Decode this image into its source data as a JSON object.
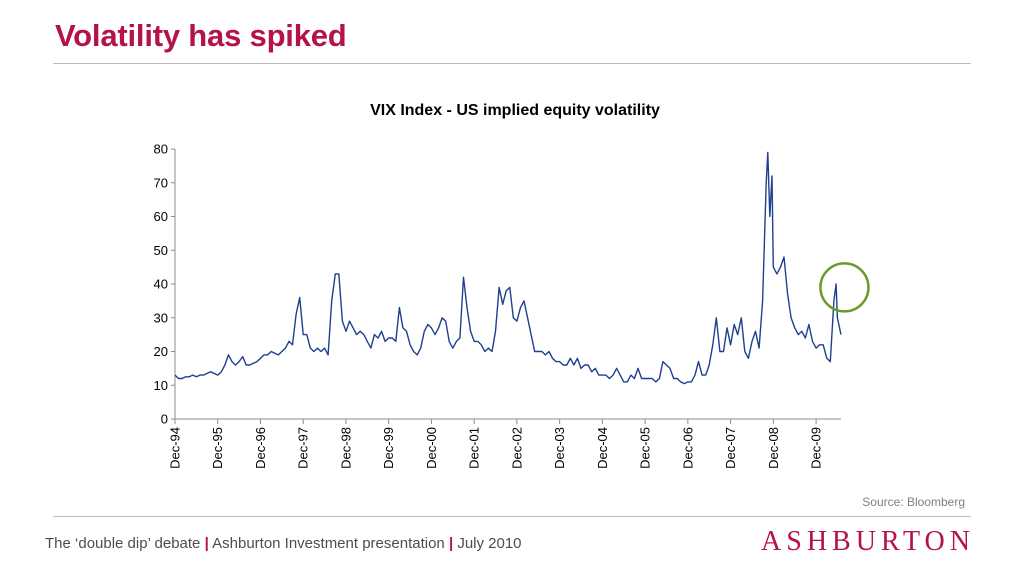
{
  "slide": {
    "title": "Volatility has spiked",
    "source": "Source: Bloomberg",
    "footer": {
      "part1": "The ‘double dip’ debate",
      "separator": "|",
      "part2": "Ashburton Investment presentation",
      "part3": "July 2010"
    },
    "brand": "ASHBURTON"
  },
  "colors": {
    "title": "#b5124a",
    "line": "#1f3f8f",
    "highlight_circle": "#6a9a2a",
    "axis": "#8c8c8c"
  },
  "chart_data": {
    "type": "line",
    "title": "VIX Index - US implied equity volatility",
    "xlabel": "",
    "ylabel": "",
    "ylim": [
      0,
      80
    ],
    "yticks": [
      0,
      10,
      20,
      30,
      40,
      50,
      60,
      70,
      80
    ],
    "xlim": [
      "1994-12",
      "2010-07"
    ],
    "xticks": [
      "Dec-94",
      "Dec-95",
      "Dec-96",
      "Dec-97",
      "Dec-98",
      "Dec-99",
      "Dec-00",
      "Dec-01",
      "Dec-02",
      "Dec-03",
      "Dec-04",
      "Dec-05",
      "Dec-06",
      "Dec-07",
      "Dec-08",
      "Dec-09"
    ],
    "grid": false,
    "legend": "none",
    "annotation": "green circle highlighting the mid-2010 spike",
    "annotation_center": [
      "2010-06",
      39
    ],
    "series": [
      {
        "values": [
          [
            "1994-12",
            13
          ],
          [
            "1995-01",
            12
          ],
          [
            "1995-02",
            12
          ],
          [
            "1995-03",
            12.5
          ],
          [
            "1995-04",
            12.5
          ],
          [
            "1995-05",
            13
          ],
          [
            "1995-06",
            12.5
          ],
          [
            "1995-07",
            13
          ],
          [
            "1995-08",
            13
          ],
          [
            "1995-09",
            13.5
          ],
          [
            "1995-10",
            14
          ],
          [
            "1995-11",
            13.5
          ],
          [
            "1995-12",
            13
          ],
          [
            "1996-01",
            14
          ],
          [
            "1996-02",
            16
          ],
          [
            "1996-03",
            19
          ],
          [
            "1996-04",
            17
          ],
          [
            "1996-05",
            16
          ],
          [
            "1996-06",
            17
          ],
          [
            "1996-07",
            18.5
          ],
          [
            "1996-08",
            16
          ],
          [
            "1996-09",
            16
          ],
          [
            "1996-10",
            16.5
          ],
          [
            "1996-11",
            17
          ],
          [
            "1996-12",
            18
          ],
          [
            "1997-01",
            19
          ],
          [
            "1997-02",
            19
          ],
          [
            "1997-03",
            20
          ],
          [
            "1997-04",
            19.5
          ],
          [
            "1997-05",
            19
          ],
          [
            "1997-06",
            20
          ],
          [
            "1997-07",
            21
          ],
          [
            "1997-08",
            23
          ],
          [
            "1997-09",
            22
          ],
          [
            "1997-10",
            31
          ],
          [
            "1997-11",
            36
          ],
          [
            "1997-12",
            25
          ],
          [
            "1998-01",
            25
          ],
          [
            "1998-02",
            21
          ],
          [
            "1998-03",
            20
          ],
          [
            "1998-04",
            21
          ],
          [
            "1998-05",
            20
          ],
          [
            "1998-06",
            21
          ],
          [
            "1998-07",
            19
          ],
          [
            "1998-08",
            35
          ],
          [
            "1998-09",
            43
          ],
          [
            "1998-10",
            43
          ],
          [
            "1998-11",
            29
          ],
          [
            "1998-12",
            26
          ],
          [
            "1999-01",
            29
          ],
          [
            "1999-02",
            27
          ],
          [
            "1999-03",
            25
          ],
          [
            "1999-04",
            26
          ],
          [
            "1999-05",
            25
          ],
          [
            "1999-06",
            23
          ],
          [
            "1999-07",
            21
          ],
          [
            "1999-08",
            25
          ],
          [
            "1999-09",
            24
          ],
          [
            "1999-10",
            26
          ],
          [
            "1999-11",
            23
          ],
          [
            "1999-12",
            24
          ],
          [
            "2000-01",
            24
          ],
          [
            "2000-02",
            23
          ],
          [
            "2000-03",
            33
          ],
          [
            "2000-04",
            27
          ],
          [
            "2000-05",
            26
          ],
          [
            "2000-06",
            22
          ],
          [
            "2000-07",
            20
          ],
          [
            "2000-08",
            19
          ],
          [
            "2000-09",
            21
          ],
          [
            "2000-10",
            26
          ],
          [
            "2000-11",
            28
          ],
          [
            "2000-12",
            27
          ],
          [
            "2001-01",
            25
          ],
          [
            "2001-02",
            27
          ],
          [
            "2001-03",
            30
          ],
          [
            "2001-04",
            29
          ],
          [
            "2001-05",
            23
          ],
          [
            "2001-06",
            21
          ],
          [
            "2001-07",
            23
          ],
          [
            "2001-08",
            24
          ],
          [
            "2001-09",
            42
          ],
          [
            "2001-10",
            33
          ],
          [
            "2001-11",
            26
          ],
          [
            "2001-12",
            23
          ],
          [
            "2002-01",
            23
          ],
          [
            "2002-02",
            22
          ],
          [
            "2002-03",
            20
          ],
          [
            "2002-04",
            21
          ],
          [
            "2002-05",
            20
          ],
          [
            "2002-06",
            26
          ],
          [
            "2002-07",
            39
          ],
          [
            "2002-08",
            34
          ],
          [
            "2002-09",
            38
          ],
          [
            "2002-10",
            39
          ],
          [
            "2002-11",
            30
          ],
          [
            "2002-12",
            29
          ],
          [
            "2003-01",
            33
          ],
          [
            "2003-02",
            35
          ],
          [
            "2003-03",
            30
          ],
          [
            "2003-04",
            25
          ],
          [
            "2003-05",
            20
          ],
          [
            "2003-06",
            20
          ],
          [
            "2003-07",
            20
          ],
          [
            "2003-08",
            19
          ],
          [
            "2003-09",
            20
          ],
          [
            "2003-10",
            18
          ],
          [
            "2003-11",
            17
          ],
          [
            "2003-12",
            17
          ],
          [
            "2004-01",
            16
          ],
          [
            "2004-02",
            16
          ],
          [
            "2004-03",
            18
          ],
          [
            "2004-04",
            16
          ],
          [
            "2004-05",
            18
          ],
          [
            "2004-06",
            15
          ],
          [
            "2004-07",
            16
          ],
          [
            "2004-08",
            16
          ],
          [
            "2004-09",
            14
          ],
          [
            "2004-10",
            15
          ],
          [
            "2004-11",
            13
          ],
          [
            "2004-12",
            13
          ],
          [
            "2005-01",
            13
          ],
          [
            "2005-02",
            12
          ],
          [
            "2005-03",
            13
          ],
          [
            "2005-04",
            15
          ],
          [
            "2005-05",
            13
          ],
          [
            "2005-06",
            11
          ],
          [
            "2005-07",
            11
          ],
          [
            "2005-08",
            13
          ],
          [
            "2005-09",
            12
          ],
          [
            "2005-10",
            15
          ],
          [
            "2005-11",
            12
          ],
          [
            "2005-12",
            12
          ],
          [
            "2006-01",
            12
          ],
          [
            "2006-02",
            12
          ],
          [
            "2006-03",
            11
          ],
          [
            "2006-04",
            12
          ],
          [
            "2006-05",
            17
          ],
          [
            "2006-06",
            16
          ],
          [
            "2006-07",
            15
          ],
          [
            "2006-08",
            12
          ],
          [
            "2006-09",
            12
          ],
          [
            "2006-10",
            11
          ],
          [
            "2006-11",
            10.5
          ],
          [
            "2006-12",
            11
          ],
          [
            "2007-01",
            11
          ],
          [
            "2007-02",
            13
          ],
          [
            "2007-03",
            17
          ],
          [
            "2007-04",
            13
          ],
          [
            "2007-05",
            13
          ],
          [
            "2007-06",
            16
          ],
          [
            "2007-07",
            22
          ],
          [
            "2007-08",
            30
          ],
          [
            "2007-09",
            20
          ],
          [
            "2007-10",
            20
          ],
          [
            "2007-11",
            27
          ],
          [
            "2007-12",
            22
          ],
          [
            "2008-01",
            28
          ],
          [
            "2008-02",
            25
          ],
          [
            "2008-03",
            30
          ],
          [
            "2008-04",
            20
          ],
          [
            "2008-05",
            18
          ],
          [
            "2008-06",
            23
          ],
          [
            "2008-07",
            26
          ],
          [
            "2008-08",
            21
          ],
          [
            "2008-09",
            35
          ],
          [
            "2008-10",
            70
          ],
          [
            "2008-10-15",
            79
          ],
          [
            "2008-11",
            60
          ],
          [
            "2008-11-20",
            72
          ],
          [
            "2008-12",
            45
          ],
          [
            "2009-01",
            43
          ],
          [
            "2009-02",
            45
          ],
          [
            "2009-03",
            48
          ],
          [
            "2009-04",
            37
          ],
          [
            "2009-05",
            30
          ],
          [
            "2009-06",
            27
          ],
          [
            "2009-07",
            25
          ],
          [
            "2009-08",
            26
          ],
          [
            "2009-09",
            24
          ],
          [
            "2009-10",
            28
          ],
          [
            "2009-11",
            23
          ],
          [
            "2009-12",
            21
          ],
          [
            "2010-01",
            22
          ],
          [
            "2010-02",
            22
          ],
          [
            "2010-03",
            18
          ],
          [
            "2010-04",
            17
          ],
          [
            "2010-05",
            35
          ],
          [
            "2010-05-20",
            40
          ],
          [
            "2010-06",
            30
          ],
          [
            "2010-07",
            25
          ]
        ]
      }
    ]
  }
}
